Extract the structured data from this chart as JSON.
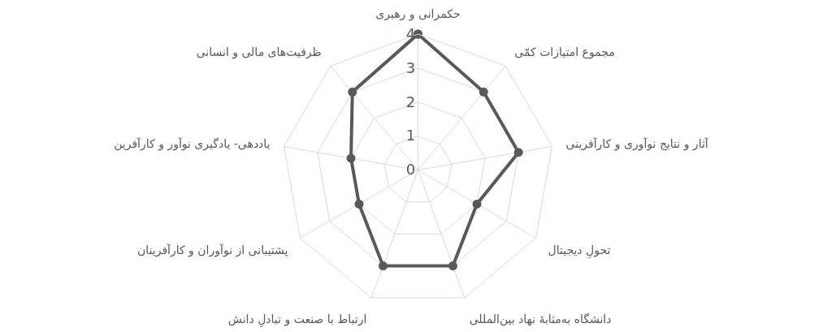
{
  "chart_data": {
    "type": "radar",
    "categories": [
      "حکمرانی و رهبری",
      "مجموع امتیازات کمّی",
      "آثار و نتایج نوآوری و کارآفرینی",
      "تحولِ دیجیتال",
      "دانشگاه به‌مثابهٔ نهاد بین‌المللی",
      "ارتباط با صنعت و تبادلِ دانش",
      "پشتیبانی از نوآوران و کارآفرینان",
      "یاددهی- یادگیری نوآور و کارآفرین",
      "ظرفیت‌های مالی و انسانی"
    ],
    "series": [
      {
        "color": "#595959",
        "values": [
          4,
          3,
          3,
          2,
          3,
          3,
          2,
          2,
          3
        ]
      }
    ],
    "ylim": [
      0,
      4
    ],
    "yticks": [
      0,
      1,
      2,
      3,
      4
    ],
    "grid": true,
    "marker": "circle",
    "line_style": "solid"
  }
}
